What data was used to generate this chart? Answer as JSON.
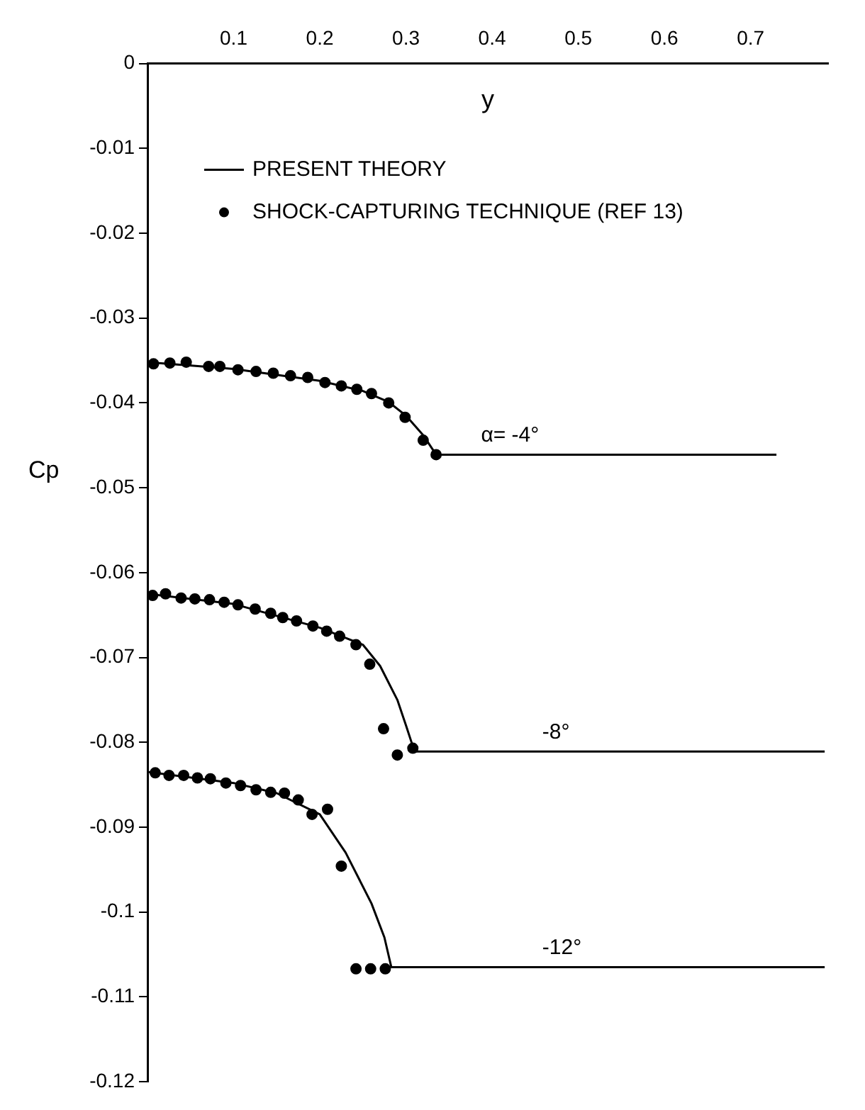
{
  "chart_data": {
    "type": "line",
    "xlabel": "y",
    "ylabel": "Cp",
    "xlim": [
      0,
      0.79
    ],
    "ylim": [
      -0.12,
      0
    ],
    "xticks": [
      0.1,
      0.2,
      0.3,
      0.4,
      0.5,
      0.6,
      0.7
    ],
    "yticks": [
      0,
      -0.01,
      -0.02,
      -0.03,
      -0.04,
      -0.05,
      -0.06,
      -0.07,
      -0.08,
      -0.09,
      -0.1,
      -0.11,
      -0.12
    ],
    "grid": false,
    "legend": "top left",
    "series": [
      {
        "name": "PRESENT THEORY",
        "color": "#000000",
        "marker": "none",
        "x": [
          0,
          0.1,
          0.2,
          0.25,
          0.28,
          0.3,
          0.32,
          0.335,
          0.73
        ],
        "values": [
          -0.0352,
          -0.036,
          -0.0374,
          -0.0386,
          -0.0399,
          -0.0415,
          -0.0438,
          -0.0461,
          -0.0461
        ]
      },
      {
        "color": "#000000",
        "marker": "none",
        "x": [
          0,
          0.1,
          0.2,
          0.25,
          0.27,
          0.29,
          0.3,
          0.31,
          0.786
        ],
        "values": [
          -0.0625,
          -0.0637,
          -0.0665,
          -0.0685,
          -0.071,
          -0.075,
          -0.078,
          -0.0811,
          -0.0811
        ]
      },
      {
        "color": "#000000",
        "marker": "none",
        "x": [
          0,
          0.1,
          0.15,
          0.2,
          0.23,
          0.26,
          0.275,
          0.283,
          0.786
        ],
        "values": [
          -0.0835,
          -0.0848,
          -0.086,
          -0.0885,
          -0.093,
          -0.099,
          -0.103,
          -0.1065,
          -0.1065
        ]
      },
      {
        "type": "scatter",
        "name": "SHOCK-CAPTURING TECHNIQUE (REF 13)",
        "color": "#000000",
        "marker": "circle",
        "x": [
          0.007,
          0.026,
          0.045,
          0.071,
          0.084,
          0.105,
          0.126,
          0.146,
          0.166,
          0.186,
          0.206,
          0.225,
          0.243,
          0.26,
          0.28,
          0.299,
          0.32,
          0.335
        ],
        "values": [
          -0.0354,
          -0.0353,
          -0.0352,
          -0.0357,
          -0.0357,
          -0.0361,
          -0.0363,
          -0.0365,
          -0.0368,
          -0.037,
          -0.0376,
          -0.038,
          -0.0384,
          -0.0389,
          -0.04,
          -0.0417,
          -0.0444,
          -0.0461
        ]
      },
      {
        "type": "scatter",
        "color": "#000000",
        "marker": "circle",
        "x": [
          0.006,
          0.021,
          0.039,
          0.055,
          0.072,
          0.089,
          0.105,
          0.125,
          0.143,
          0.157,
          0.173,
          0.192,
          0.208,
          0.223,
          0.242,
          0.258,
          0.274,
          0.29,
          0.308
        ],
        "values": [
          -0.0627,
          -0.0625,
          -0.063,
          -0.0631,
          -0.0632,
          -0.0635,
          -0.0638,
          -0.0643,
          -0.0648,
          -0.0653,
          -0.0657,
          -0.0663,
          -0.0669,
          -0.0675,
          -0.0685,
          -0.0708,
          -0.0784,
          -0.0815,
          -0.0807
        ]
      },
      {
        "type": "scatter",
        "color": "#000000",
        "marker": "circle",
        "x": [
          0.009,
          0.025,
          0.042,
          0.058,
          0.073,
          0.091,
          0.108,
          0.126,
          0.143,
          0.159,
          0.175,
          0.191,
          0.209,
          0.225,
          0.242,
          0.259,
          0.276
        ],
        "values": [
          -0.0836,
          -0.0839,
          -0.0839,
          -0.0842,
          -0.0843,
          -0.0848,
          -0.0851,
          -0.0856,
          -0.0859,
          -0.086,
          -0.0868,
          -0.0885,
          -0.0879,
          -0.0946,
          -0.1067,
          -0.1067,
          -0.1067
        ]
      }
    ],
    "annotations": [
      "α= -4°",
      "-8°",
      "-12°"
    ]
  }
}
